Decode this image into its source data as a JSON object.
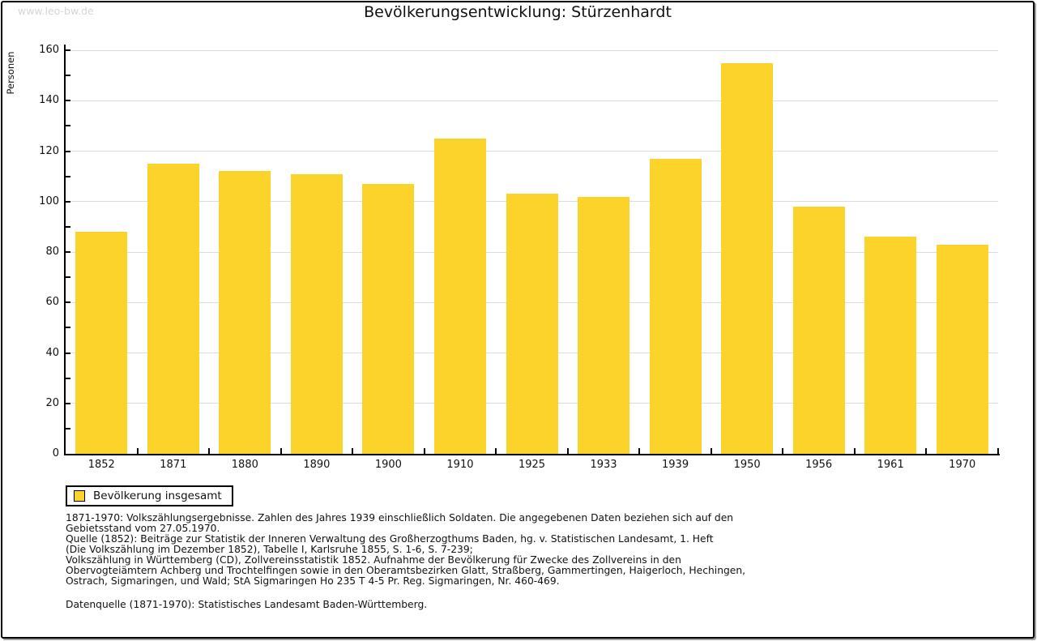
{
  "watermark": "www.leo-bw.de",
  "legend": {
    "label": "Bevölkerung insgesamt"
  },
  "colors": {
    "bar": "#fcd32b",
    "grid": "#dcdcdc",
    "axis": "#000000",
    "watermark": "#d5d5d5"
  },
  "chart_data": {
    "type": "bar",
    "title": "Bevölkerungsentwicklung: Stürzenhardt",
    "categories": [
      "1852",
      "1871",
      "1880",
      "1890",
      "1900",
      "1910",
      "1925",
      "1933",
      "1939",
      "1950",
      "1956",
      "1961",
      "1970"
    ],
    "values": [
      88,
      115,
      112,
      111,
      107,
      125,
      103,
      102,
      117,
      155,
      98,
      86,
      83
    ],
    "series_name": "Bevölkerung insgesamt",
    "xlabel": "",
    "ylabel": "Personen",
    "ylim": [
      0,
      160
    ],
    "ytick_step": 20,
    "minor_tick_step": 10,
    "grid": true,
    "legend_position": "bottom-left",
    "bar_color": "#fcd32b"
  },
  "footnotes": {
    "lines": [
      "1871-1970: Volkszählungsergebnisse. Zahlen des Jahres 1939 einschließlich Soldaten. Die angegebenen Daten beziehen sich auf den",
      "Gebietsstand vom 27.05.1970.",
      "Quelle (1852): Beiträge zur Statistik der Inneren Verwaltung des Großherzogthums Baden, hg. v. Statistischen Landesamt, 1. Heft",
      "(Die Volkszählung im Dezember 1852), Tabelle I, Karlsruhe 1855, S. 1-6, S. 7-239;",
      "Volkszählung in Württemberg (CD), Zollvereinsstatistik 1852. Aufnahme der Bevölkerung für Zwecke des Zollvereins in den",
      "Obervogteiämtern Achberg und Trochtelfingen sowie in den Oberamtsbezirken Glatt, Straßberg, Gammertingen, Haigerloch, Hechingen,",
      "Ostrach, Sigmaringen, und Wald; StA Sigmaringen Ho 235 T 4-5 Pr. Reg. Sigmaringen, Nr. 460-469."
    ],
    "datasource": "Datenquelle (1871-1970): Statistisches Landesamt Baden-Württemberg."
  }
}
